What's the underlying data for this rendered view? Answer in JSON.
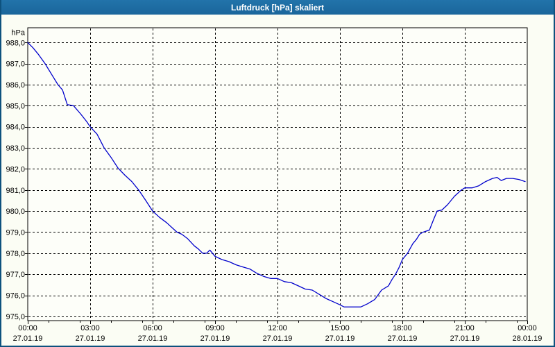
{
  "window": {
    "title": "Luftdruck [hPa] skaliert"
  },
  "colors": {
    "title_bar": "#1e6da3",
    "title_text": "#ffffff",
    "frame_border": "#0e527e",
    "body_bg": "#fbfdf4",
    "plot_bg": "#fdfef9",
    "grid": "#000000",
    "axis_text": "#000000",
    "series_line": "#0000cc"
  },
  "chart_data": {
    "type": "line",
    "title": "Luftdruck [hPa] skaliert",
    "legend": "none",
    "grid": "dashed",
    "y_axis": {
      "unit_label": "hPa",
      "range": [
        974.8,
        988.7
      ],
      "tick_values": [
        988,
        987,
        986,
        985,
        984,
        983,
        982,
        981,
        980,
        979,
        978,
        977,
        976,
        975
      ],
      "tick_labels": [
        "988,0",
        "987,0",
        "986,0",
        "985,0",
        "984,0",
        "983,0",
        "982,0",
        "981,0",
        "980,0",
        "979,0",
        "978,0",
        "977,0",
        "976,0",
        "975,0"
      ]
    },
    "x_axis": {
      "range_hours": [
        0,
        24
      ],
      "major_ticks": [
        {
          "hour": 0,
          "time": "00:00",
          "date": "27.01.19"
        },
        {
          "hour": 3,
          "time": "03:00",
          "date": "27.01.19"
        },
        {
          "hour": 6,
          "time": "06:00",
          "date": "27.01.19"
        },
        {
          "hour": 9,
          "time": "09:00",
          "date": "27.01.19"
        },
        {
          "hour": 12,
          "time": "12:00",
          "date": "27.01.19"
        },
        {
          "hour": 15,
          "time": "15:00",
          "date": "27.01.19"
        },
        {
          "hour": 18,
          "time": "18:00",
          "date": "27.01.19"
        },
        {
          "hour": 21,
          "time": "21:00",
          "date": "27.01.19"
        },
        {
          "hour": 24,
          "time": "00:00",
          "date": "28.01.19"
        }
      ],
      "minor_tick_hours": [
        1,
        2.5,
        4,
        5.5,
        7,
        8.5,
        10,
        11.5,
        13,
        14.5,
        16,
        17.5,
        19,
        20.5,
        22,
        23.5
      ]
    },
    "series": [
      {
        "name": "Luftdruck",
        "unit": "hPa",
        "color": "#0000cc",
        "points_time_hPa": [
          [
            0.0,
            988.0
          ],
          [
            0.25,
            987.75
          ],
          [
            0.5,
            987.45
          ],
          [
            0.83,
            987.0
          ],
          [
            1.17,
            986.45
          ],
          [
            1.45,
            986.0
          ],
          [
            1.67,
            985.75
          ],
          [
            1.9,
            985.05
          ],
          [
            2.2,
            985.0
          ],
          [
            2.55,
            984.6
          ],
          [
            2.83,
            984.25
          ],
          [
            3.0,
            984.0
          ],
          [
            3.33,
            983.65
          ],
          [
            3.67,
            983.0
          ],
          [
            4.0,
            982.55
          ],
          [
            4.33,
            982.05
          ],
          [
            4.67,
            981.7
          ],
          [
            5.0,
            981.4
          ],
          [
            5.33,
            981.0
          ],
          [
            5.67,
            980.5
          ],
          [
            6.0,
            980.0
          ],
          [
            6.33,
            979.7
          ],
          [
            6.67,
            979.45
          ],
          [
            7.0,
            979.15
          ],
          [
            7.17,
            979.0
          ],
          [
            7.4,
            978.9
          ],
          [
            7.67,
            978.7
          ],
          [
            8.0,
            978.35
          ],
          [
            8.2,
            978.2
          ],
          [
            8.4,
            978.0
          ],
          [
            8.6,
            978.0
          ],
          [
            8.75,
            978.15
          ],
          [
            9.0,
            977.85
          ],
          [
            9.33,
            977.7
          ],
          [
            9.67,
            977.6
          ],
          [
            10.0,
            977.45
          ],
          [
            10.33,
            977.35
          ],
          [
            10.67,
            977.25
          ],
          [
            11.0,
            977.05
          ],
          [
            11.33,
            976.9
          ],
          [
            11.67,
            976.8
          ],
          [
            12.0,
            976.8
          ],
          [
            12.33,
            976.65
          ],
          [
            12.67,
            976.6
          ],
          [
            13.0,
            976.45
          ],
          [
            13.33,
            976.3
          ],
          [
            13.67,
            976.25
          ],
          [
            14.0,
            976.05
          ],
          [
            14.33,
            975.85
          ],
          [
            14.67,
            975.7
          ],
          [
            15.0,
            975.55
          ],
          [
            15.2,
            975.45
          ],
          [
            15.6,
            975.45
          ],
          [
            16.0,
            975.45
          ],
          [
            16.33,
            975.6
          ],
          [
            16.67,
            975.8
          ],
          [
            17.0,
            976.25
          ],
          [
            17.33,
            976.45
          ],
          [
            17.5,
            976.75
          ],
          [
            17.67,
            977.0
          ],
          [
            17.83,
            977.3
          ],
          [
            18.0,
            977.7
          ],
          [
            18.25,
            978.0
          ],
          [
            18.5,
            978.45
          ],
          [
            18.67,
            978.65
          ],
          [
            18.83,
            978.9
          ],
          [
            19.0,
            979.0
          ],
          [
            19.3,
            979.1
          ],
          [
            19.5,
            979.6
          ],
          [
            19.67,
            980.0
          ],
          [
            19.9,
            980.05
          ],
          [
            20.17,
            980.3
          ],
          [
            20.5,
            980.7
          ],
          [
            20.83,
            981.0
          ],
          [
            21.0,
            981.1
          ],
          [
            21.35,
            981.1
          ],
          [
            21.67,
            981.2
          ],
          [
            22.0,
            981.4
          ],
          [
            22.33,
            981.55
          ],
          [
            22.55,
            981.6
          ],
          [
            22.75,
            981.45
          ],
          [
            23.0,
            981.55
          ],
          [
            23.3,
            981.55
          ],
          [
            23.6,
            981.5
          ],
          [
            23.9,
            981.4
          ]
        ]
      }
    ]
  }
}
